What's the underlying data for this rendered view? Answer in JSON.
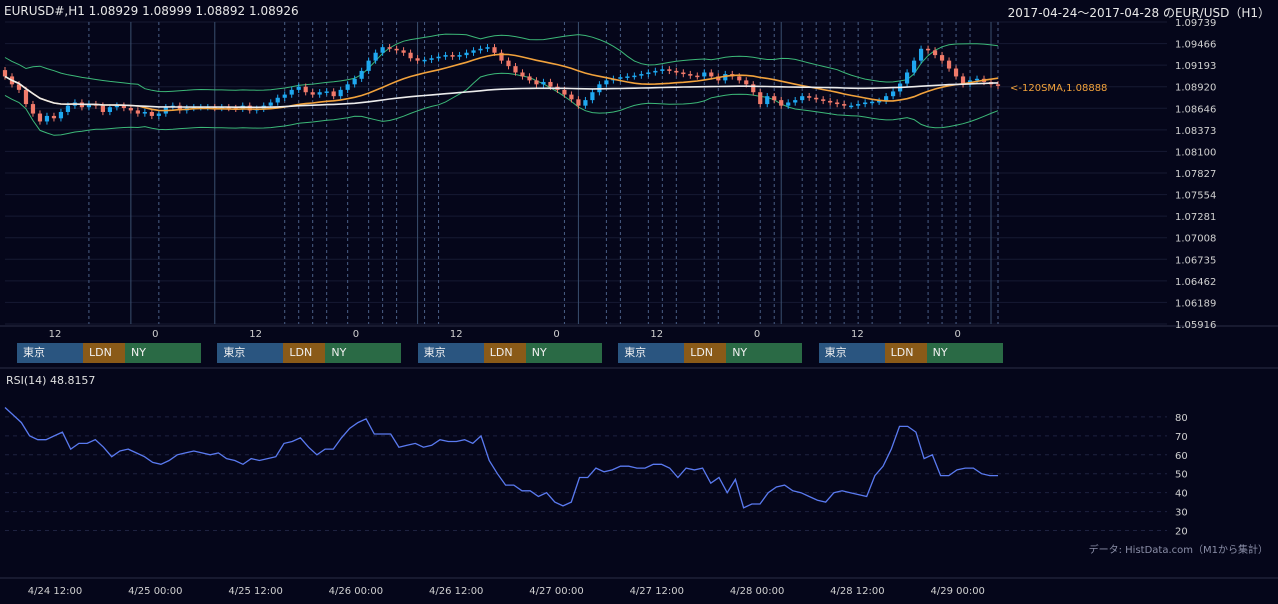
{
  "header": {
    "symbol_info": "EURUSD#,H1 1.08929 1.08999 1.08892 1.08926",
    "range_title": "2017-04-24～2017-04-28 のEUR/USD（H1）"
  },
  "ma_label": "<-120SMA,1.08888",
  "rsi_label": "RSI(14) 48.8157",
  "credit": "データ: HistData.com（M1から集計）",
  "sessions": {
    "tokyo": "東京",
    "london": "LDN",
    "ny": "NY"
  },
  "colors": {
    "background": "#05061a",
    "bull": "#1fa8f0",
    "bear": "#f07a6a",
    "sma20": "#f2a23c",
    "sma120": "#ececec",
    "bollinger": "#3cb878",
    "rsi": "#5a7af0",
    "tokyo": "#2a5580",
    "london": "#8a5a18",
    "ny": "#2a6a45"
  },
  "chart_data": [
    {
      "type": "candlestick",
      "name": "price",
      "y_ticks": [
        "1.09739",
        "1.09466",
        "1.09193",
        "1.08920",
        "1.08646",
        "1.08373",
        "1.08100",
        "1.07827",
        "1.07554",
        "1.07281",
        "1.07008",
        "1.06735",
        "1.06462",
        "1.06189",
        "1.05916"
      ],
      "ylim": [
        1.05916,
        1.09739
      ],
      "session_hour_ticks": [
        "12",
        "0",
        "12",
        "0",
        "12",
        "0",
        "12",
        "0",
        "12",
        "0"
      ],
      "close": [
        1.0905,
        1.0895,
        1.0888,
        1.087,
        1.0858,
        1.0848,
        1.0855,
        1.0852,
        1.086,
        1.0868,
        1.0872,
        1.0866,
        1.087,
        1.0868,
        1.086,
        1.0866,
        1.0868,
        1.0865,
        1.0862,
        1.0858,
        1.086,
        1.0855,
        1.0858,
        1.0866,
        1.0868,
        1.0862,
        1.0865,
        1.0866,
        1.0866,
        1.0866,
        1.0865,
        1.0866,
        1.0865,
        1.0864,
        1.0868,
        1.0862,
        1.0864,
        1.0868,
        1.0872,
        1.0878,
        1.0882,
        1.0888,
        1.0892,
        1.0885,
        1.0882,
        1.0885,
        1.0886,
        1.088,
        1.0888,
        1.0895,
        1.0902,
        1.0912,
        1.0925,
        1.0935,
        1.0942,
        1.094,
        1.0938,
        1.0935,
        1.0928,
        1.0925,
        1.0926,
        1.0928,
        1.093,
        1.0932,
        1.093,
        1.0932,
        1.0935,
        1.0938,
        1.094,
        1.0942,
        1.0935,
        1.0925,
        1.0918,
        1.091,
        1.0905,
        1.09,
        1.0895,
        1.0898,
        1.0892,
        1.0888,
        1.0882,
        1.0876,
        1.0868,
        1.0875,
        1.0885,
        1.0895,
        1.09,
        1.0902,
        1.0904,
        1.0905,
        1.0906,
        1.0908,
        1.091,
        1.0912,
        1.0914,
        1.0912,
        1.091,
        1.0908,
        1.0906,
        1.0905,
        1.091,
        1.0905,
        1.09,
        1.0908,
        1.0905,
        1.09,
        1.0895,
        1.0885,
        1.087,
        1.088,
        1.0875,
        1.0868,
        1.0872,
        1.0875,
        1.088,
        1.0878,
        1.0876,
        1.0874,
        1.0872,
        1.087,
        1.0868,
        1.0868,
        1.087,
        1.0872,
        1.0873,
        1.0874,
        1.088,
        1.0886,
        1.0896,
        1.091,
        1.0925,
        1.094,
        1.0938,
        1.0932,
        1.0925,
        1.0915,
        1.0905,
        1.0895,
        1.09,
        1.0902,
        1.0898,
        1.0895,
        1.0893
      ]
    },
    {
      "type": "line",
      "name": "RSI(14)",
      "y_ticks": [
        80,
        70,
        60,
        50,
        40,
        30,
        20
      ],
      "ylim": [
        15,
        90
      ],
      "x_tick_labels": [
        "4/24 12:00",
        "4/25 00:00",
        "4/25 12:00",
        "4/26 00:00",
        "4/26 12:00",
        "4/27 00:00",
        "4/27 12:00",
        "4/28 00:00",
        "4/28 12:00",
        "4/29 00:00"
      ],
      "values": [
        85,
        81,
        77,
        70,
        68,
        68,
        70,
        72,
        63,
        66,
        66,
        68,
        64,
        59,
        62,
        63,
        61,
        59,
        56,
        55,
        57,
        60,
        61,
        62,
        61,
        60,
        61,
        58,
        57,
        55,
        58,
        57,
        58,
        59,
        66,
        67,
        69,
        64,
        60,
        63,
        63,
        69,
        74,
        77,
        79,
        71,
        71,
        71,
        64,
        65,
        66,
        64,
        65,
        68,
        67,
        67,
        68,
        66,
        70,
        57,
        50,
        44,
        44,
        41,
        41,
        38,
        40,
        35,
        33,
        35,
        48,
        48,
        53,
        51,
        52,
        54,
        54,
        53,
        53,
        55,
        55,
        53,
        48,
        53,
        52,
        53,
        45,
        48,
        40,
        47,
        32,
        34,
        34,
        40,
        43,
        44,
        41,
        40,
        38,
        36,
        35,
        40,
        41,
        40,
        39,
        38,
        49,
        54,
        63,
        75,
        75,
        72,
        58,
        60,
        49,
        49,
        52,
        53,
        53,
        50,
        49,
        49
      ]
    }
  ]
}
